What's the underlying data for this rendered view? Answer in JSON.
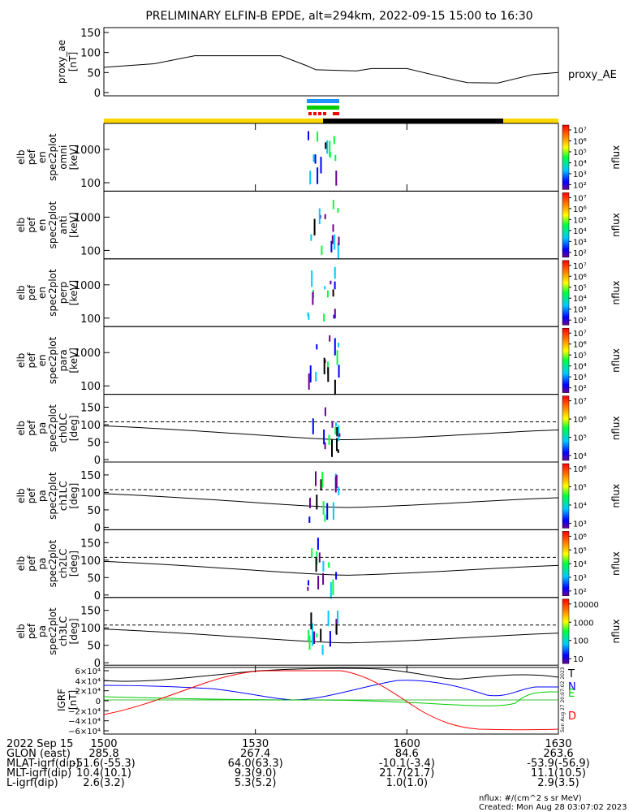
{
  "title": "PRELIMINARY ELFIN-B EPDE, alt=294km, 2022-09-15 15:00 to 16:30",
  "chart_data": [
    {
      "type": "line",
      "panel": "proxy_ae",
      "ylabel": [
        "proxy_ae",
        "[nT]"
      ],
      "legend": "proxy_AE",
      "yticks": [
        "150",
        "100",
        "50",
        "0"
      ],
      "ylim": [
        0,
        150
      ],
      "x_minutes": [
        0,
        10,
        18,
        35,
        40,
        42,
        50,
        53,
        60,
        70,
        72,
        78,
        85,
        90
      ],
      "values": [
        63,
        72,
        92,
        92,
        68,
        57,
        54,
        60,
        60,
        30,
        25,
        24,
        45,
        50
      ]
    },
    {
      "type": "heatmap",
      "panel": "omni",
      "ylabel": [
        "elb",
        "pef",
        "en",
        "spec2plot",
        "omni",
        "[keV]"
      ],
      "yticks": [
        "1000",
        "100"
      ],
      "yscale": "log",
      "colorbar": {
        "label": "nflux",
        "ticks": [
          "10⁷",
          "10⁶",
          "10⁵",
          "10⁴",
          "10³",
          "10²"
        ]
      }
    },
    {
      "type": "heatmap",
      "panel": "anti",
      "ylabel": [
        "elb",
        "pef",
        "en",
        "spec2plot",
        "anti",
        "[keV]"
      ],
      "yticks": [
        "1000",
        "100"
      ],
      "yscale": "log",
      "colorbar": {
        "label": "nflux",
        "ticks": [
          "10⁷",
          "10⁶",
          "10⁵",
          "10⁴",
          "10³",
          "10²"
        ]
      }
    },
    {
      "type": "heatmap",
      "panel": "perp",
      "ylabel": [
        "elb",
        "pef",
        "en",
        "spec2plot",
        "perp",
        "[keV]"
      ],
      "yticks": [
        "1000",
        "100"
      ],
      "yscale": "log",
      "colorbar": {
        "label": "nflux",
        "ticks": [
          "10⁷",
          "10⁶",
          "10⁵",
          "10⁴",
          "10³",
          "10²"
        ]
      }
    },
    {
      "type": "heatmap",
      "panel": "para",
      "ylabel": [
        "elb",
        "pef",
        "en",
        "spec2plot",
        "para",
        "[keV]"
      ],
      "yticks": [
        "1000",
        "100"
      ],
      "yscale": "log",
      "colorbar": {
        "label": "nflux",
        "ticks": [
          "10⁷",
          "10⁶",
          "10⁵",
          "10⁴",
          "10³",
          "10²"
        ]
      }
    },
    {
      "type": "heatmap",
      "panel": "ch0LC",
      "ylabel": [
        "elb",
        "pef",
        "pa",
        "spec2plot",
        "ch0LC",
        "[deg]"
      ],
      "yticks": [
        "150",
        "100",
        "50",
        "0"
      ],
      "ylim": [
        0,
        180
      ],
      "colorbar": {
        "label": "nflux",
        "ticks": [
          "10⁷",
          "10⁶",
          "10⁵",
          "10⁴"
        ]
      }
    },
    {
      "type": "heatmap",
      "panel": "ch1LC",
      "ylabel": [
        "elb",
        "pef",
        "pa",
        "spec2plot",
        "ch1LC",
        "[deg]"
      ],
      "yticks": [
        "150",
        "100",
        "50",
        "0"
      ],
      "ylim": [
        0,
        180
      ],
      "colorbar": {
        "label": "nflux",
        "ticks": [
          "10⁶",
          "10⁵",
          "10⁴",
          "10³"
        ]
      }
    },
    {
      "type": "heatmap",
      "panel": "ch2LC",
      "ylabel": [
        "elb",
        "pef",
        "pa",
        "spec2plot",
        "ch2LC",
        "[deg]"
      ],
      "yticks": [
        "150",
        "100",
        "50",
        "0"
      ],
      "ylim": [
        0,
        180
      ],
      "colorbar": {
        "label": "nflux",
        "ticks": [
          "10⁶",
          "10⁵",
          "10⁴",
          "10³",
          "10²"
        ]
      }
    },
    {
      "type": "heatmap",
      "panel": "ch3LC",
      "ylabel": [
        "elb",
        "pef",
        "pa",
        "spec2plot",
        "ch3LC",
        "[deg]"
      ],
      "yticks": [
        "150",
        "100",
        "50",
        "0"
      ],
      "ylim": [
        0,
        180
      ],
      "colorbar": {
        "label": "nflux",
        "ticks": [
          "10000",
          "1000",
          "100",
          "10"
        ]
      }
    },
    {
      "type": "line",
      "panel": "IGRF",
      "ylabel": [
        "IGRF",
        "[nT]"
      ],
      "yticks": [
        "6×10⁴",
        "4×10⁴",
        "2×10⁴",
        "0",
        "−2×10⁴",
        "−4×10⁴",
        "−6×10⁴"
      ],
      "ylim": [
        -60000,
        60000
      ],
      "legend": [
        "T",
        "N",
        "E",
        "D"
      ],
      "colors": {
        "T": "#000000",
        "N": "#0000ff",
        "E": "#00cc00",
        "D": "#ff0000"
      },
      "side_note": "Sun Aug 27 20:07:02 2023"
    }
  ],
  "xaxis": {
    "ticks": [
      "1500",
      "1530",
      "1600",
      "1630"
    ],
    "rows": [
      {
        "label": "2022 Sep 15",
        "values": [
          "",
          "",
          "",
          ""
        ]
      },
      {
        "label": "GLON (east)",
        "values": [
          "285.8",
          "267.4",
          "84.6",
          "263.6"
        ]
      },
      {
        "label": "MLAT-igrf(dip)",
        "values": [
          "-51.6(-55.3)",
          "64.0(63.3)",
          "-10.1(-3.4)",
          "-53.9(-56.9)"
        ]
      },
      {
        "label": "MLT-igrf(dip)",
        "values": [
          "10.4(10.1)",
          "9.3(9.0)",
          "21.7(21.7)",
          "11.1(10.5)"
        ]
      },
      {
        "label": "L-igrf(dip)",
        "values": [
          "2.6(3.2)",
          "5.3(5.2)",
          "1.0(1.0)",
          "2.9(3.5)"
        ]
      }
    ]
  },
  "footer": {
    "units": "nflux: #/(cm^2 s sr MeV)",
    "created": "Created: Mon Aug 28 03:07:02 2023"
  }
}
